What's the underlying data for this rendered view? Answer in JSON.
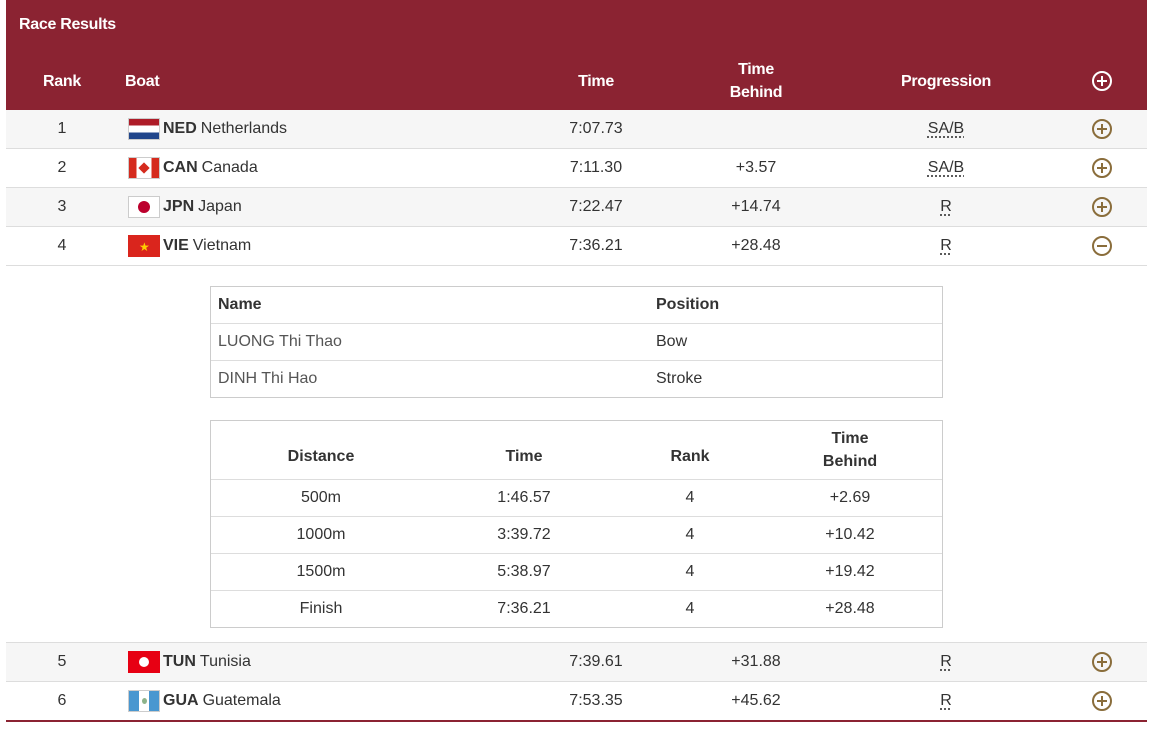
{
  "title": "Race Results",
  "columns": {
    "rank": "Rank",
    "boat": "Boat",
    "time": "Time",
    "behind_line1": "Time",
    "behind_line2": "Behind",
    "progression": "Progression"
  },
  "rows": [
    {
      "rank": "1",
      "noc": "NED",
      "country": "Netherlands",
      "time": "7:07.73",
      "behind": "",
      "progression": "SA/B",
      "flag": "netherlands-flag-icon",
      "expanded": false
    },
    {
      "rank": "2",
      "noc": "CAN",
      "country": "Canada",
      "time": "7:11.30",
      "behind": "+3.57",
      "progression": "SA/B",
      "flag": "canada-flag-icon",
      "expanded": false
    },
    {
      "rank": "3",
      "noc": "JPN",
      "country": "Japan",
      "time": "7:22.47",
      "behind": "+14.74",
      "progression": "R",
      "flag": "japan-flag-icon",
      "expanded": false
    },
    {
      "rank": "4",
      "noc": "VIE",
      "country": "Vietnam",
      "time": "7:36.21",
      "behind": "+28.48",
      "progression": "R",
      "flag": "vietnam-flag-icon",
      "expanded": true
    },
    {
      "rank": "5",
      "noc": "TUN",
      "country": "Tunisia",
      "time": "7:39.61",
      "behind": "+31.88",
      "progression": "R",
      "flag": "tunisia-flag-icon",
      "expanded": false
    },
    {
      "rank": "6",
      "noc": "GUA",
      "country": "Guatemala",
      "time": "7:53.35",
      "behind": "+45.62",
      "progression": "R",
      "flag": "guatemala-flag-icon",
      "expanded": false
    }
  ],
  "crew": {
    "headers": {
      "name": "Name",
      "position": "Position"
    },
    "members": [
      {
        "name": "LUONG Thi Thao",
        "position": "Bow"
      },
      {
        "name": "DINH Thi Hao",
        "position": "Stroke"
      }
    ]
  },
  "splits": {
    "headers": {
      "distance": "Distance",
      "time": "Time",
      "rank": "Rank",
      "behind_line1": "Time",
      "behind_line2": "Behind"
    },
    "rows": [
      {
        "distance": "500m",
        "time": "1:46.57",
        "rank": "4",
        "behind": "+2.69"
      },
      {
        "distance": "1000m",
        "time": "3:39.72",
        "rank": "4",
        "behind": "+10.42"
      },
      {
        "distance": "1500m",
        "time": "5:38.97",
        "rank": "4",
        "behind": "+19.42"
      },
      {
        "distance": "Finish",
        "time": "7:36.21",
        "rank": "4",
        "behind": "+28.48"
      }
    ]
  },
  "colors": {
    "header": "#8b2332",
    "icon": "#8a6d3b"
  }
}
